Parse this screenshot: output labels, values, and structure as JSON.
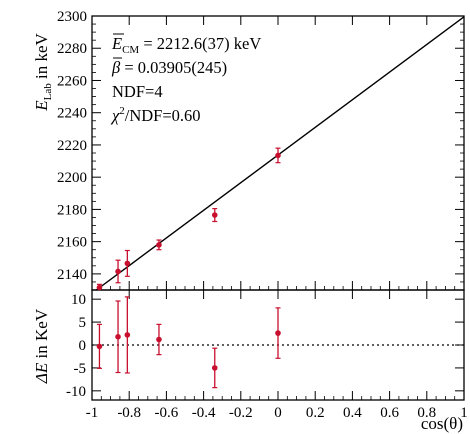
{
  "chart_data": [
    {
      "type": "scatter",
      "panel": "top",
      "xlim": [
        -1,
        1
      ],
      "ylim": [
        2130,
        2300
      ],
      "x_ticks": [
        -1,
        -0.8,
        -0.6,
        -0.4,
        -0.2,
        0,
        0.2,
        0.4,
        0.6,
        0.8,
        1
      ],
      "y_ticks": [
        2140,
        2160,
        2180,
        2200,
        2220,
        2240,
        2260,
        2280,
        2300
      ],
      "y_tick_labels": [
        "2140",
        "2160",
        "2180",
        "2200",
        "2220",
        "2240",
        "2260",
        "2280",
        "2300"
      ],
      "ylabel_main": "E",
      "ylabel_sub": "Lab",
      "ylabel_rest": " in keV",
      "points": [
        {
          "x": -0.96,
          "y": 2131.5,
          "err": 2.0
        },
        {
          "x": -0.86,
          "y": 2141.5,
          "err": 7.0
        },
        {
          "x": -0.81,
          "y": 2146.5,
          "err": 8.0
        },
        {
          "x": -0.64,
          "y": 2158.0,
          "err": 3.0
        },
        {
          "x": -0.34,
          "y": 2176.5,
          "err": 4.0
        },
        {
          "x": 0.0,
          "y": 2213.5,
          "err": 4.5
        }
      ],
      "fit_line": {
        "x": [
          -1,
          1
        ],
        "y": [
          2128.0,
          2299.5
        ]
      },
      "grid": false,
      "marker_color": "#c8102e",
      "line_color": "#000000",
      "annotations": {
        "l1_var": "E",
        "l1_sub": "CM",
        "l1_val": " = 2212.6(37) keV",
        "l2_var": "β",
        "l2_val": " = 0.03905(245)",
        "l3": "NDF=4",
        "l4_var": "χ",
        "l4_sup": "2",
        "l4_val": "/NDF=0.60"
      }
    },
    {
      "type": "scatter",
      "panel": "bottom",
      "xlim": [
        -1,
        1
      ],
      "ylim": [
        -12,
        12
      ],
      "x_ticks": [
        -1,
        -0.8,
        -0.6,
        -0.4,
        -0.2,
        0,
        0.2,
        0.4,
        0.6,
        0.8,
        1
      ],
      "x_tick_labels": [
        "-1",
        "-0.8",
        "-0.6",
        "-0.4",
        "-0.2",
        "0",
        "0.2",
        "0.4",
        "0.6",
        "0.8",
        "1"
      ],
      "y_ticks": [
        -10,
        -5,
        0,
        5,
        10
      ],
      "y_tick_labels": [
        "-10",
        "-5",
        "0",
        "5",
        "10"
      ],
      "ylabel_main": "ΔE",
      "ylabel_rest": " in KeV",
      "xlabel": "cos(θ)",
      "points": [
        {
          "x": -0.96,
          "y": -0.3,
          "err": 4.8
        },
        {
          "x": -0.86,
          "y": 1.8,
          "err": 7.8
        },
        {
          "x": -0.81,
          "y": 2.2,
          "err": 8.3
        },
        {
          "x": -0.64,
          "y": 1.2,
          "err": 3.3
        },
        {
          "x": -0.34,
          "y": -5.0,
          "err": 4.3
        },
        {
          "x": 0.0,
          "y": 2.6,
          "err": 5.5
        }
      ],
      "zero_line": 0,
      "marker_color": "#c8102e"
    }
  ]
}
